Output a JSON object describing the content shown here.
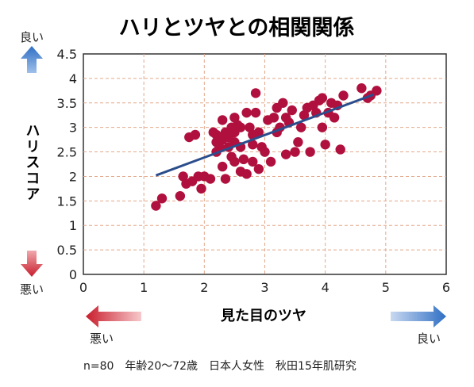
{
  "chart_data": {
    "type": "scatter",
    "title": "ハリとツヤとの相関関係",
    "xlabel": "見た目のツヤ",
    "ylabel": "ハリスコア",
    "xlim": [
      0,
      6
    ],
    "ylim": [
      0,
      4.5
    ],
    "x_ticks": [
      "0",
      "1",
      "2",
      "3",
      "4",
      "5",
      "6"
    ],
    "y_ticks": [
      "0",
      "0.5",
      "1",
      "1.5",
      "2",
      "2.5",
      "3",
      "3.5",
      "4",
      "4.5"
    ],
    "grid": true,
    "y_good_label": "良い",
    "y_bad_label": "悪い",
    "x_bad_label": "悪い",
    "x_good_label": "良い",
    "footnote": "n=80　年齢20〜72歳　日本人女性　秋田15年肌研究",
    "point_color": "#b0103e",
    "trend_color": "#2b4d8c",
    "trendline": {
      "x": [
        1.2,
        4.8
      ],
      "y": [
        2.02,
        3.67
      ]
    },
    "points": [
      [
        1.2,
        1.4
      ],
      [
        1.3,
        1.55
      ],
      [
        1.6,
        1.6
      ],
      [
        1.65,
        2.0
      ],
      [
        1.7,
        1.85
      ],
      [
        1.75,
        2.8
      ],
      [
        1.85,
        2.85
      ],
      [
        1.9,
        2.0
      ],
      [
        1.95,
        1.75
      ],
      [
        2.0,
        2.0
      ],
      [
        2.1,
        1.95
      ],
      [
        2.2,
        2.5
      ],
      [
        2.2,
        2.7
      ],
      [
        2.2,
        2.85
      ],
      [
        2.25,
        2.6
      ],
      [
        2.3,
        2.75
      ],
      [
        2.3,
        3.15
      ],
      [
        2.3,
        2.2
      ],
      [
        2.35,
        2.9
      ],
      [
        2.35,
        1.95
      ],
      [
        2.4,
        2.8
      ],
      [
        2.4,
        2.6
      ],
      [
        2.45,
        2.4
      ],
      [
        2.45,
        3.0
      ],
      [
        2.5,
        2.3
      ],
      [
        2.5,
        2.7
      ],
      [
        2.5,
        3.2
      ],
      [
        2.5,
        2.9
      ],
      [
        2.55,
        3.05
      ],
      [
        2.6,
        2.6
      ],
      [
        2.6,
        2.1
      ],
      [
        2.65,
        2.35
      ],
      [
        2.7,
        3.3
      ],
      [
        2.7,
        2.05
      ],
      [
        2.75,
        3.0
      ],
      [
        2.8,
        2.85
      ],
      [
        2.8,
        2.65
      ],
      [
        2.8,
        2.3
      ],
      [
        2.85,
        3.3
      ],
      [
        2.85,
        3.7
      ],
      [
        2.9,
        2.9
      ],
      [
        2.95,
        2.6
      ],
      [
        3.0,
        2.5
      ],
      [
        3.1,
        2.3
      ],
      [
        3.15,
        3.2
      ],
      [
        3.2,
        2.9
      ],
      [
        3.2,
        3.4
      ],
      [
        3.25,
        3.0
      ],
      [
        3.3,
        3.5
      ],
      [
        3.35,
        3.2
      ],
      [
        3.4,
        3.1
      ],
      [
        3.45,
        3.35
      ],
      [
        3.5,
        2.5
      ],
      [
        3.55,
        2.7
      ],
      [
        3.6,
        3.0
      ],
      [
        3.65,
        3.25
      ],
      [
        3.7,
        3.4
      ],
      [
        3.75,
        2.5
      ],
      [
        3.8,
        3.45
      ],
      [
        3.85,
        3.3
      ],
      [
        3.9,
        3.55
      ],
      [
        3.95,
        3.6
      ],
      [
        3.95,
        3.0
      ],
      [
        4.0,
        2.65
      ],
      [
        4.05,
        3.3
      ],
      [
        4.1,
        3.5
      ],
      [
        4.15,
        3.2
      ],
      [
        4.2,
        3.45
      ],
      [
        4.25,
        2.55
      ],
      [
        4.3,
        3.65
      ],
      [
        4.6,
        3.8
      ],
      [
        4.7,
        3.6
      ],
      [
        4.75,
        3.65
      ],
      [
        4.85,
        3.75
      ],
      [
        2.15,
        2.9
      ],
      [
        2.6,
        3.0
      ],
      [
        3.05,
        3.15
      ],
      [
        1.8,
        1.9
      ],
      [
        3.35,
        2.45
      ],
      [
        2.9,
        2.15
      ]
    ]
  }
}
